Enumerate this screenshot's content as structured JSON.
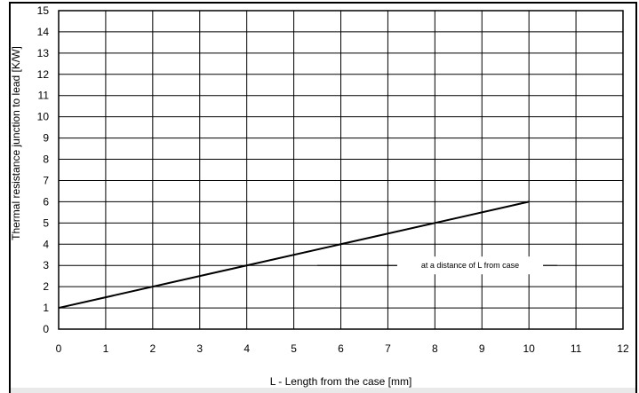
{
  "chart_data": {
    "type": "line",
    "title": "",
    "xlabel": "L - Length from the case  [mm]",
    "ylabel": "Thermal resistance junction to lead  [K/W]",
    "xlim": [
      0,
      12
    ],
    "ylim": [
      0,
      15
    ],
    "x_ticks": [
      "0",
      "1",
      "2",
      "3",
      "4",
      "5",
      "6",
      "7",
      "8",
      "9",
      "10",
      "11",
      "12"
    ],
    "y_ticks": [
      "0",
      "1",
      "2",
      "3",
      "4",
      "5",
      "6",
      "7",
      "8",
      "9",
      "10",
      "11",
      "12",
      "13",
      "14",
      "15"
    ],
    "grid": true,
    "series": [
      {
        "x": [
          0,
          10
        ],
        "y": [
          1,
          6
        ]
      }
    ],
    "annotations": [
      {
        "text": "at a distance of L from case"
      }
    ]
  }
}
